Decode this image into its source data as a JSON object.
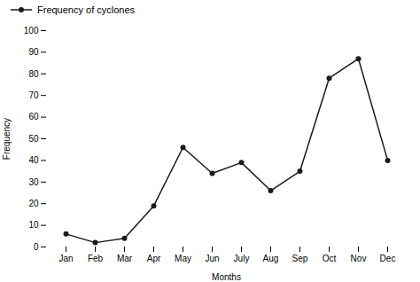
{
  "chart_data": {
    "type": "line",
    "categories": [
      "Jan",
      "Feb",
      "Mar",
      "Apr",
      "May",
      "Jun",
      "July",
      "Aug",
      "Sep",
      "Oct",
      "Nov",
      "Dec"
    ],
    "series": [
      {
        "name": "Frequency of cyclones",
        "color": "#1a1a1a",
        "marker": "circle",
        "values": [
          6,
          2,
          4,
          19,
          46,
          34,
          39,
          26,
          35,
          78,
          87,
          40
        ]
      }
    ],
    "xlabel": "Months",
    "ylabel": "Frequency",
    "ylim": [
      0,
      100
    ],
    "yticks": [
      0,
      10,
      20,
      30,
      40,
      50,
      60,
      70,
      80,
      90,
      100
    ],
    "grid": false,
    "legend": "upper left"
  }
}
